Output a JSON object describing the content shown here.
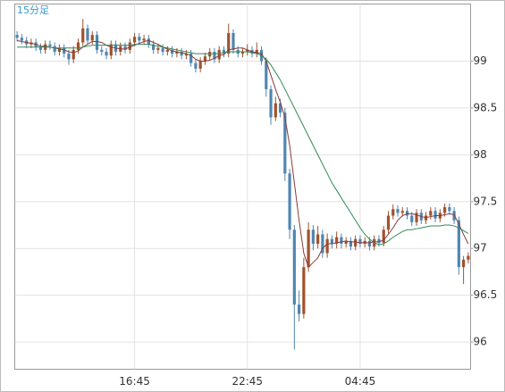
{
  "chart_data": {
    "type": "candlestick",
    "title": "15分足",
    "categories": [
      null,
      null,
      null,
      null,
      null,
      null,
      null,
      null,
      null,
      null,
      null,
      null,
      null,
      null,
      null,
      null,
      null,
      null,
      null,
      null,
      null,
      null,
      null,
      null,
      null,
      "16:45",
      null,
      null,
      null,
      null,
      null,
      null,
      null,
      null,
      null,
      null,
      null,
      null,
      null,
      null,
      null,
      null,
      null,
      null,
      null,
      null,
      null,
      null,
      null,
      "22:45",
      null,
      null,
      null,
      null,
      null,
      null,
      null,
      null,
      null,
      null,
      null,
      null,
      null,
      null,
      null,
      null,
      null,
      null,
      null,
      null,
      null,
      null,
      null,
      "04:45",
      null,
      null,
      null,
      null,
      null,
      null,
      null,
      null,
      null,
      null,
      null,
      null,
      null,
      null,
      null,
      null,
      null,
      null,
      null,
      null,
      null,
      null,
      null
    ],
    "open": [
      99.28,
      99.25,
      99.22,
      99.18,
      99.2,
      99.15,
      99.12,
      99.18,
      99.16,
      99.1,
      99.14,
      99.08,
      99.02,
      99.12,
      99.2,
      99.35,
      99.22,
      99.28,
      99.12,
      99.1,
      99.06,
      99.18,
      99.1,
      99.16,
      99.12,
      99.2,
      99.26,
      99.22,
      99.24,
      99.18,
      99.12,
      99.14,
      99.1,
      99.12,
      99.08,
      99.1,
      99.06,
      99.08,
      98.98,
      98.92,
      99.0,
      99.05,
      99.1,
      99.02,
      99.12,
      99.08,
      99.3,
      99.12,
      99.08,
      99.1,
      99.12,
      99.08,
      99.12,
      99.0,
      98.7,
      98.4,
      98.55,
      98.45,
      97.8,
      97.2,
      96.4,
      96.3,
      96.8,
      97.2,
      97.05,
      97.15,
      96.95,
      97.1,
      97.05,
      97.12,
      97.05,
      97.08,
      97.02,
      97.1,
      97.05,
      97.08,
      97.02,
      97.1,
      97.06,
      97.2,
      97.35,
      97.42,
      97.38,
      97.4,
      97.35,
      97.28,
      97.38,
      97.3,
      97.35,
      97.4,
      97.32,
      97.38,
      97.44,
      97.4,
      97.3,
      96.8,
      96.88
    ],
    "high": [
      99.32,
      99.29,
      99.26,
      99.24,
      99.24,
      99.19,
      99.22,
      99.22,
      99.2,
      99.18,
      99.18,
      99.12,
      99.16,
      99.24,
      99.45,
      99.39,
      99.32,
      99.32,
      99.16,
      99.14,
      99.22,
      99.22,
      99.2,
      99.2,
      99.24,
      99.3,
      99.3,
      99.28,
      99.28,
      99.22,
      99.18,
      99.18,
      99.16,
      99.16,
      99.14,
      99.14,
      99.12,
      99.12,
      99.02,
      99.04,
      99.09,
      99.14,
      99.14,
      99.16,
      99.16,
      99.4,
      99.34,
      99.16,
      99.14,
      99.18,
      99.16,
      99.2,
      99.16,
      99.04,
      98.74,
      98.62,
      98.6,
      98.5,
      97.85,
      97.25,
      96.55,
      96.9,
      97.28,
      97.25,
      97.24,
      97.2,
      97.16,
      97.14,
      97.18,
      97.16,
      97.12,
      97.12,
      97.14,
      97.14,
      97.12,
      97.12,
      97.14,
      97.14,
      97.24,
      97.4,
      97.47,
      97.46,
      97.44,
      97.44,
      97.39,
      97.42,
      97.42,
      97.39,
      97.44,
      97.44,
      97.42,
      97.48,
      97.48,
      97.44,
      97.34,
      96.92,
      96.96
    ],
    "low": [
      99.21,
      99.18,
      99.14,
      99.14,
      99.11,
      99.08,
      99.08,
      99.12,
      99.06,
      99.06,
      99.04,
      98.96,
      98.98,
      99.08,
      99.16,
      99.18,
      99.18,
      99.08,
      99.06,
      99.02,
      99.02,
      99.06,
      99.06,
      99.08,
      99.08,
      99.16,
      99.18,
      99.18,
      99.14,
      99.08,
      99.08,
      99.06,
      99.06,
      99.04,
      99.04,
      99.02,
      99.02,
      98.94,
      98.88,
      98.88,
      98.96,
      99.01,
      98.98,
      98.98,
      99.04,
      99.04,
      99.08,
      99.04,
      99.04,
      99.06,
      99.04,
      99.04,
      98.96,
      98.62,
      98.32,
      98.36,
      98.4,
      97.72,
      97.1,
      95.92,
      96.22,
      96.25,
      96.75,
      96.98,
      97.0,
      96.9,
      96.9,
      97.0,
      97.0,
      97.0,
      97.01,
      96.98,
      96.98,
      97.01,
      97.01,
      96.98,
      96.98,
      97.02,
      97.02,
      97.16,
      97.31,
      97.34,
      97.34,
      97.31,
      97.24,
      97.24,
      97.26,
      97.26,
      97.31,
      97.28,
      97.28,
      97.34,
      97.36,
      97.26,
      96.72,
      96.62,
      96.84
    ],
    "close": [
      99.25,
      99.22,
      99.18,
      99.2,
      99.15,
      99.12,
      99.18,
      99.16,
      99.1,
      99.14,
      99.08,
      99.02,
      99.12,
      99.2,
      99.35,
      99.22,
      99.28,
      99.12,
      99.1,
      99.06,
      99.18,
      99.1,
      99.16,
      99.12,
      99.2,
      99.26,
      99.22,
      99.24,
      99.18,
      99.12,
      99.14,
      99.1,
      99.12,
      99.08,
      99.1,
      99.06,
      99.08,
      98.98,
      98.92,
      99.0,
      99.05,
      99.1,
      99.02,
      99.12,
      99.08,
      99.3,
      99.12,
      99.08,
      99.1,
      99.12,
      99.08,
      99.12,
      99.0,
      98.7,
      98.4,
      98.55,
      98.45,
      97.8,
      97.2,
      96.4,
      96.3,
      96.8,
      97.2,
      97.05,
      97.15,
      96.95,
      97.1,
      97.05,
      97.12,
      97.05,
      97.08,
      97.02,
      97.1,
      97.05,
      97.08,
      97.02,
      97.1,
      97.06,
      97.2,
      97.35,
      97.42,
      97.38,
      97.4,
      97.35,
      97.28,
      97.38,
      97.3,
      97.35,
      97.4,
      97.32,
      97.38,
      97.44,
      97.4,
      97.3,
      96.8,
      96.88,
      96.92
    ],
    "up_color": "#a0522d",
    "down_color": "#4f86b0",
    "lines": [
      {
        "color": "#8b3a3a",
        "values": [
          99.22,
          99.21,
          99.2,
          99.19,
          99.18,
          99.16,
          99.16,
          99.15,
          99.14,
          99.13,
          99.12,
          99.1,
          99.09,
          99.11,
          99.15,
          99.18,
          99.21,
          99.21,
          99.2,
          99.17,
          99.15,
          99.14,
          99.13,
          99.13,
          99.15,
          99.17,
          99.19,
          99.21,
          99.22,
          99.2,
          99.18,
          99.15,
          99.13,
          99.11,
          99.1,
          99.09,
          99.08,
          99.06,
          99.02,
          99.0,
          99.0,
          99.01,
          99.03,
          99.06,
          99.07,
          99.12,
          99.13,
          99.14,
          99.14,
          99.12,
          99.1,
          99.09,
          99.08,
          99.0,
          98.85,
          98.7,
          98.56,
          98.4,
          98.1,
          97.7,
          97.3,
          96.95,
          96.8,
          96.85,
          96.9,
          97.0,
          97.05,
          97.05,
          97.06,
          97.07,
          97.08,
          97.07,
          97.07,
          97.06,
          97.06,
          97.06,
          97.07,
          97.07,
          97.09,
          97.15,
          97.22,
          97.3,
          97.35,
          97.37,
          97.37,
          97.36,
          97.34,
          97.33,
          97.34,
          97.35,
          97.35,
          97.36,
          97.37,
          97.36,
          97.26,
          97.15,
          97.05
        ]
      },
      {
        "color": "#2e8b57",
        "values": [
          99.15,
          99.15,
          99.15,
          99.15,
          99.15,
          99.15,
          99.15,
          99.15,
          99.14,
          99.14,
          99.14,
          99.14,
          99.14,
          99.14,
          99.15,
          99.16,
          99.17,
          99.17,
          99.17,
          99.17,
          99.17,
          99.17,
          99.17,
          99.17,
          99.17,
          99.18,
          99.18,
          99.18,
          99.18,
          99.17,
          99.16,
          99.15,
          99.14,
          99.13,
          99.12,
          99.11,
          99.1,
          99.09,
          99.08,
          99.08,
          99.08,
          99.08,
          99.08,
          99.08,
          99.09,
          99.1,
          99.1,
          99.1,
          99.1,
          99.1,
          99.09,
          99.08,
          99.06,
          99.02,
          98.96,
          98.88,
          98.8,
          98.7,
          98.6,
          98.5,
          98.4,
          98.3,
          98.2,
          98.1,
          98.0,
          97.9,
          97.8,
          97.7,
          97.62,
          97.54,
          97.46,
          97.38,
          97.3,
          97.22,
          97.15,
          97.1,
          97.06,
          97.04,
          97.05,
          97.08,
          97.12,
          97.15,
          97.18,
          97.2,
          97.2,
          97.21,
          97.22,
          97.23,
          97.24,
          97.24,
          97.24,
          97.25,
          97.25,
          97.24,
          97.22,
          97.19,
          97.16
        ]
      }
    ],
    "ylim": [
      95.71,
      99.61
    ],
    "yticks": [
      96,
      96.5,
      97,
      97.5,
      98,
      98.5,
      99
    ],
    "grid": true
  }
}
